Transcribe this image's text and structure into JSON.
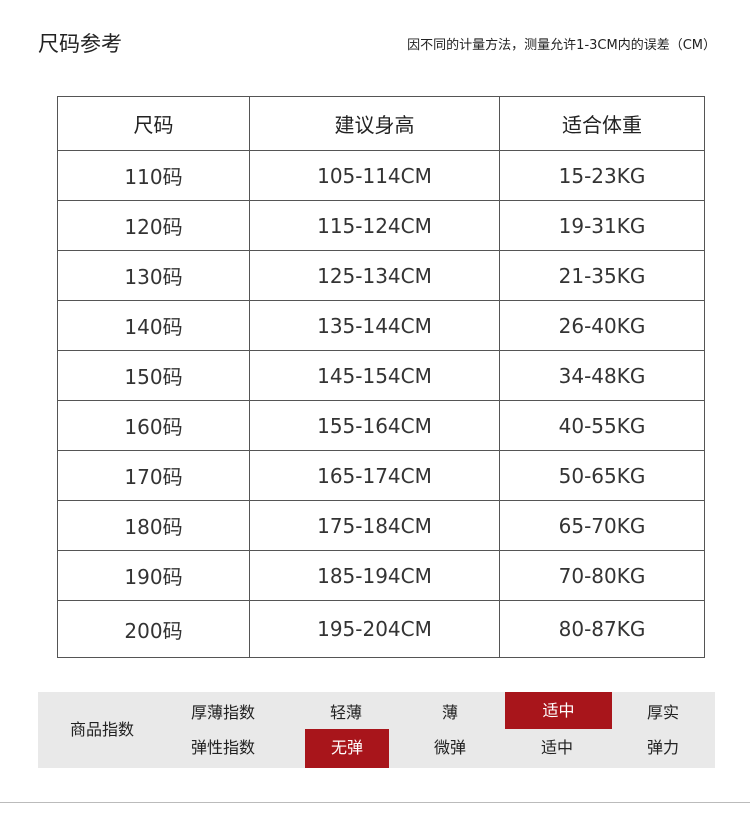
{
  "title": "尺码参考",
  "note": "因不同的计量方法，测量允许1-3CM内的误差（CM）",
  "table": {
    "headers": [
      "尺码",
      "建议身高",
      "适合体重"
    ],
    "rows": [
      [
        "110码",
        "105-114CM",
        "15-23KG"
      ],
      [
        "120码",
        "115-124CM",
        "19-31KG"
      ],
      [
        "130码",
        "125-134CM",
        "21-35KG"
      ],
      [
        "140码",
        "135-144CM",
        "26-40KG"
      ],
      [
        "150码",
        "145-154CM",
        "34-48KG"
      ],
      [
        "160码",
        "155-164CM",
        "40-55KG"
      ],
      [
        "170码",
        "165-174CM",
        "50-65KG"
      ],
      [
        "180码",
        "175-184CM",
        "65-70KG"
      ],
      [
        "190码",
        "185-194CM",
        "70-80KG"
      ],
      [
        "200码",
        "195-204CM",
        "80-87KG"
      ]
    ]
  },
  "index": {
    "label": "商品指数",
    "thickness": {
      "label": "厚薄指数",
      "options": [
        "轻薄",
        "薄",
        "适中",
        "厚实"
      ],
      "selected": "适中"
    },
    "elasticity": {
      "label": "弹性指数",
      "options": [
        "无弹",
        "微弹",
        "适中",
        "弹力"
      ],
      "selected": "无弹"
    },
    "accent": "#a8151b"
  }
}
